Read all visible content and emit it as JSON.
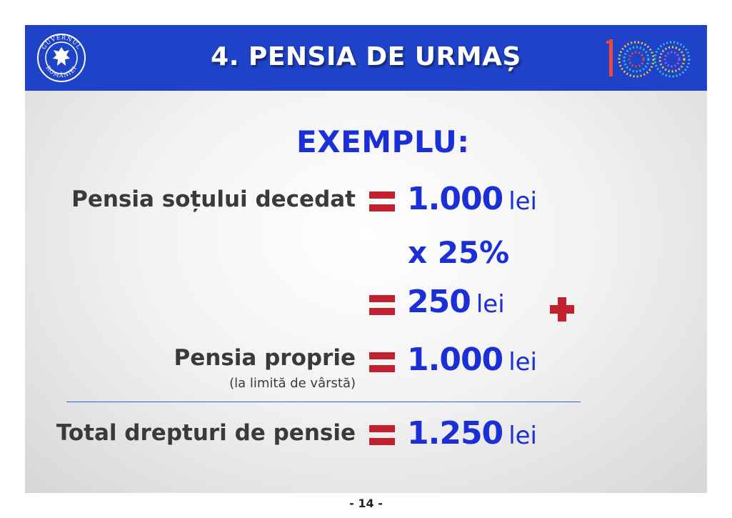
{
  "header": {
    "title": "4. PENSIA DE URMAȘ",
    "seal_text_top": "GUVERNUL",
    "seal_text_bottom": "ROMÂNIEI",
    "centenary_logo": "100"
  },
  "example": {
    "heading": "EXEMPLU:",
    "rows": [
      {
        "label": "Pensia soțului decedat",
        "value": "1.000",
        "unit": "lei"
      },
      {
        "operator": "x 25%"
      },
      {
        "value": "250",
        "unit": "lei",
        "suffix_icon": "plus-icon"
      },
      {
        "label": "Pensia proprie",
        "sublabel": "(la limită de vârstă)",
        "value": "1.000",
        "unit": "lei"
      },
      {
        "label": "Total drepturi de pensie",
        "value": "1.250",
        "unit": "lei"
      }
    ]
  },
  "footer": {
    "page": "- 14 -"
  },
  "colors": {
    "header_bg": "#1f43c8",
    "value_blue": "#1b2fd6",
    "accent_red": "#c3202f",
    "label_gray": "#3a3a3a"
  }
}
